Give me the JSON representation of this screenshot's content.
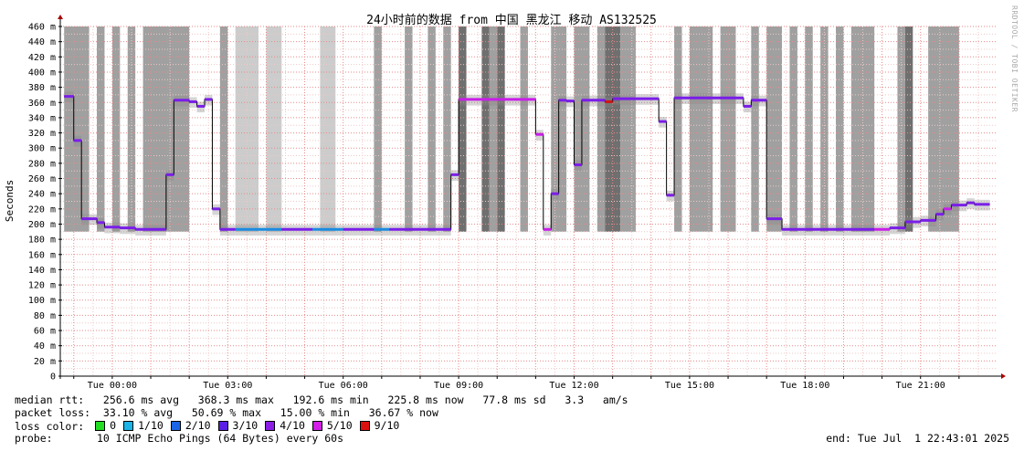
{
  "chart_data": {
    "type": "line",
    "title": "24小时前的数据 from 中国 黑龙江 移动 AS132525",
    "ylabel": "Seconds",
    "watermark": "RRDTOOL / TOBI OETIKER",
    "ylim": [
      0,
      460
    ],
    "y_ticks": [
      {
        "v": 460,
        "label": "460 m"
      },
      {
        "v": 440,
        "label": "440 m"
      },
      {
        "v": 420,
        "label": "420 m"
      },
      {
        "v": 400,
        "label": "400 m"
      },
      {
        "v": 380,
        "label": "380 m"
      },
      {
        "v": 360,
        "label": "360 m"
      },
      {
        "v": 340,
        "label": "340 m"
      },
      {
        "v": 320,
        "label": "320 m"
      },
      {
        "v": 300,
        "label": "300 m"
      },
      {
        "v": 280,
        "label": "280 m"
      },
      {
        "v": 260,
        "label": "260 m"
      },
      {
        "v": 240,
        "label": "240 m"
      },
      {
        "v": 220,
        "label": "220 m"
      },
      {
        "v": 200,
        "label": "200 m"
      },
      {
        "v": 180,
        "label": "180 m"
      },
      {
        "v": 160,
        "label": "160 m"
      },
      {
        "v": 140,
        "label": "140 m"
      },
      {
        "v": 120,
        "label": "120 m"
      },
      {
        "v": 100,
        "label": "100 m"
      },
      {
        "v": 80,
        "label": "80 m"
      },
      {
        "v": 60,
        "label": "60 m"
      },
      {
        "v": 40,
        "label": "40 m"
      },
      {
        "v": 20,
        "label": "20 m"
      },
      {
        "v": 0,
        "label": "0"
      }
    ],
    "xlim": [
      -1.35,
      23.0
    ],
    "x_ticks": [
      {
        "v": 0,
        "label": "Tue 00:00"
      },
      {
        "v": 3,
        "label": "Tue 03:00"
      },
      {
        "v": 6,
        "label": "Tue 06:00"
      },
      {
        "v": 9,
        "label": "Tue 09:00"
      },
      {
        "v": 12,
        "label": "Tue 12:00"
      },
      {
        "v": 15,
        "label": "Tue 15:00"
      },
      {
        "v": 18,
        "label": "Tue 18:00"
      },
      {
        "v": 21,
        "label": "Tue 21:00"
      }
    ],
    "loss_bands": [
      {
        "x0": -1.25,
        "x1": -0.6,
        "shade": "#a0a0a0"
      },
      {
        "x0": -0.4,
        "x1": -0.2,
        "shade": "#a0a0a0"
      },
      {
        "x0": 0.0,
        "x1": 0.2,
        "shade": "#a0a0a0"
      },
      {
        "x0": 0.4,
        "x1": 0.6,
        "shade": "#a0a0a0"
      },
      {
        "x0": 0.8,
        "x1": 1.45,
        "shade": "#a0a0a0"
      },
      {
        "x0": 1.45,
        "x1": 2.0,
        "shade": "#a0a0a0"
      },
      {
        "x0": 2.8,
        "x1": 3.0,
        "shade": "#a0a0a0"
      },
      {
        "x0": 3.2,
        "x1": 3.8,
        "shade": "#cccccc"
      },
      {
        "x0": 4.0,
        "x1": 4.4,
        "shade": "#cccccc"
      },
      {
        "x0": 5.4,
        "x1": 5.8,
        "shade": "#cccccc"
      },
      {
        "x0": 6.8,
        "x1": 7.0,
        "shade": "#a0a0a0"
      },
      {
        "x0": 7.6,
        "x1": 7.8,
        "shade": "#a0a0a0"
      },
      {
        "x0": 8.2,
        "x1": 8.4,
        "shade": "#a0a0a0"
      },
      {
        "x0": 8.6,
        "x1": 8.8,
        "shade": "#a0a0a0"
      },
      {
        "x0": 9.0,
        "x1": 9.2,
        "shade": "#6f6f6f"
      },
      {
        "x0": 9.6,
        "x1": 9.8,
        "shade": "#6f6f6f"
      },
      {
        "x0": 9.8,
        "x1": 10.0,
        "shade": "#a0a0a0"
      },
      {
        "x0": 10.0,
        "x1": 10.2,
        "shade": "#6f6f6f"
      },
      {
        "x0": 10.6,
        "x1": 10.8,
        "shade": "#a0a0a0"
      },
      {
        "x0": 11.4,
        "x1": 11.8,
        "shade": "#a0a0a0"
      },
      {
        "x0": 12.0,
        "x1": 12.4,
        "shade": "#a0a0a0"
      },
      {
        "x0": 12.6,
        "x1": 12.8,
        "shade": "#a0a0a0"
      },
      {
        "x0": 12.8,
        "x1": 13.2,
        "shade": "#6f6f6f"
      },
      {
        "x0": 13.2,
        "x1": 13.6,
        "shade": "#a0a0a0"
      },
      {
        "x0": 14.6,
        "x1": 14.8,
        "shade": "#a0a0a0"
      },
      {
        "x0": 15.0,
        "x1": 15.6,
        "shade": "#a0a0a0"
      },
      {
        "x0": 15.8,
        "x1": 16.2,
        "shade": "#a0a0a0"
      },
      {
        "x0": 16.6,
        "x1": 16.8,
        "shade": "#a0a0a0"
      },
      {
        "x0": 17.0,
        "x1": 17.4,
        "shade": "#a0a0a0"
      },
      {
        "x0": 17.6,
        "x1": 17.8,
        "shade": "#a0a0a0"
      },
      {
        "x0": 18.0,
        "x1": 18.2,
        "shade": "#a0a0a0"
      },
      {
        "x0": 18.4,
        "x1": 18.6,
        "shade": "#a0a0a0"
      },
      {
        "x0": 18.8,
        "x1": 19.0,
        "shade": "#a0a0a0"
      },
      {
        "x0": 19.2,
        "x1": 19.8,
        "shade": "#a0a0a0"
      },
      {
        "x0": 20.4,
        "x1": 20.6,
        "shade": "#a0a0a0"
      },
      {
        "x0": 20.6,
        "x1": 20.8,
        "shade": "#6f6f6f"
      },
      {
        "x0": 21.2,
        "x1": 22.0,
        "shade": "#a0a0a0"
      }
    ],
    "rtt_steps": [
      {
        "t": -1.25,
        "v": 368,
        "c": "#7a1ee8"
      },
      {
        "t": -1.0,
        "v": 310,
        "c": "#7a1ee8"
      },
      {
        "t": -0.8,
        "v": 207,
        "c": "#7a1ee8"
      },
      {
        "t": -0.4,
        "v": 202,
        "c": "#7a1ee8"
      },
      {
        "t": -0.2,
        "v": 196,
        "c": "#7a1ee8"
      },
      {
        "t": 0.2,
        "v": 195,
        "c": "#7a1ee8"
      },
      {
        "t": 0.6,
        "v": 193,
        "c": "#7a1ee8"
      },
      {
        "t": 1.4,
        "v": 265,
        "c": "#7a1ee8"
      },
      {
        "t": 1.6,
        "v": 363,
        "c": "#7a1ee8"
      },
      {
        "t": 2.0,
        "v": 361,
        "c": "#7a1ee8"
      },
      {
        "t": 2.2,
        "v": 355,
        "c": "#7a1ee8"
      },
      {
        "t": 2.4,
        "v": 364,
        "c": "#7a1ee8"
      },
      {
        "t": 2.6,
        "v": 220,
        "c": "#7a1ee8"
      },
      {
        "t": 2.8,
        "v": 193,
        "c": "#7a1ee8"
      },
      {
        "t": 3.2,
        "v": 193,
        "c": "#1a8ce0"
      },
      {
        "t": 4.4,
        "v": 193,
        "c": "#7a1ee8"
      },
      {
        "t": 5.2,
        "v": 193,
        "c": "#1a8ce0"
      },
      {
        "t": 6.0,
        "v": 193,
        "c": "#7a1ee8"
      },
      {
        "t": 6.8,
        "v": 193,
        "c": "#1a8ce0"
      },
      {
        "t": 7.2,
        "v": 193,
        "c": "#7a1ee8"
      },
      {
        "t": 8.8,
        "v": 265,
        "c": "#7a1ee8"
      },
      {
        "t": 9.0,
        "v": 364,
        "c": "#c81ee8"
      },
      {
        "t": 11.0,
        "v": 318,
        "c": "#c81ee8"
      },
      {
        "t": 11.2,
        "v": 193,
        "c": "#c81ee8"
      },
      {
        "t": 11.4,
        "v": 240,
        "c": "#7a1ee8"
      },
      {
        "t": 11.6,
        "v": 363,
        "c": "#7a1ee8"
      },
      {
        "t": 11.8,
        "v": 362,
        "c": "#7a1ee8"
      },
      {
        "t": 12.0,
        "v": 278,
        "c": "#7a1ee8"
      },
      {
        "t": 12.2,
        "v": 363,
        "c": "#7a1ee8"
      },
      {
        "t": 12.8,
        "v": 361,
        "c": "#d21414"
      },
      {
        "t": 13.0,
        "v": 365,
        "c": "#7a1ee8"
      },
      {
        "t": 14.2,
        "v": 335,
        "c": "#7a1ee8"
      },
      {
        "t": 14.4,
        "v": 238,
        "c": "#7a1ee8"
      },
      {
        "t": 14.6,
        "v": 366,
        "c": "#7a1ee8"
      },
      {
        "t": 16.4,
        "v": 355,
        "c": "#7a1ee8"
      },
      {
        "t": 16.6,
        "v": 363,
        "c": "#7a1ee8"
      },
      {
        "t": 17.0,
        "v": 207,
        "c": "#7a1ee8"
      },
      {
        "t": 17.4,
        "v": 193,
        "c": "#7a1ee8"
      },
      {
        "t": 19.8,
        "v": 193,
        "c": "#c81ee8"
      },
      {
        "t": 20.2,
        "v": 195,
        "c": "#7a1ee8"
      },
      {
        "t": 20.6,
        "v": 203,
        "c": "#7a1ee8"
      },
      {
        "t": 21.0,
        "v": 205,
        "c": "#7a1ee8"
      },
      {
        "t": 21.4,
        "v": 213,
        "c": "#7a1ee8"
      },
      {
        "t": 21.6,
        "v": 220,
        "c": "#c81ee8"
      },
      {
        "t": 21.8,
        "v": 225,
        "c": "#7a1ee8"
      },
      {
        "t": 22.2,
        "v": 228,
        "c": "#7a1ee8"
      },
      {
        "t": 22.4,
        "v": 226,
        "c": "#7a1ee8"
      },
      {
        "t": 22.6,
        "v": 226,
        "c": "#7a1ee8"
      }
    ],
    "rtt_end": 22.8
  },
  "stats": {
    "median_rtt": "median rtt:   256.6 ms avg   368.3 ms max   192.6 ms min   225.8 ms now   77.8 ms sd   3.3   am/s",
    "packet_loss": "packet loss:  33.10 % avg   50.69 % max   15.00 % min   36.67 % now",
    "loss_color_label": "loss color:",
    "probe": "probe:       10 ICMP Echo Pings (64 Bytes) every 60s",
    "end": "end: Tue Jul  1 22:43:01 2025"
  },
  "legend": [
    {
      "label": "0",
      "color": "#22dd22"
    },
    {
      "label": "1/10",
      "color": "#1ab4e6"
    },
    {
      "label": "2/10",
      "color": "#1e64e6"
    },
    {
      "label": "3/10",
      "color": "#5a1ee6"
    },
    {
      "label": "4/10",
      "color": "#8c1ee6"
    },
    {
      "label": "5/10",
      "color": "#d21ee6"
    },
    {
      "label": "9/10",
      "color": "#dd1010"
    }
  ]
}
